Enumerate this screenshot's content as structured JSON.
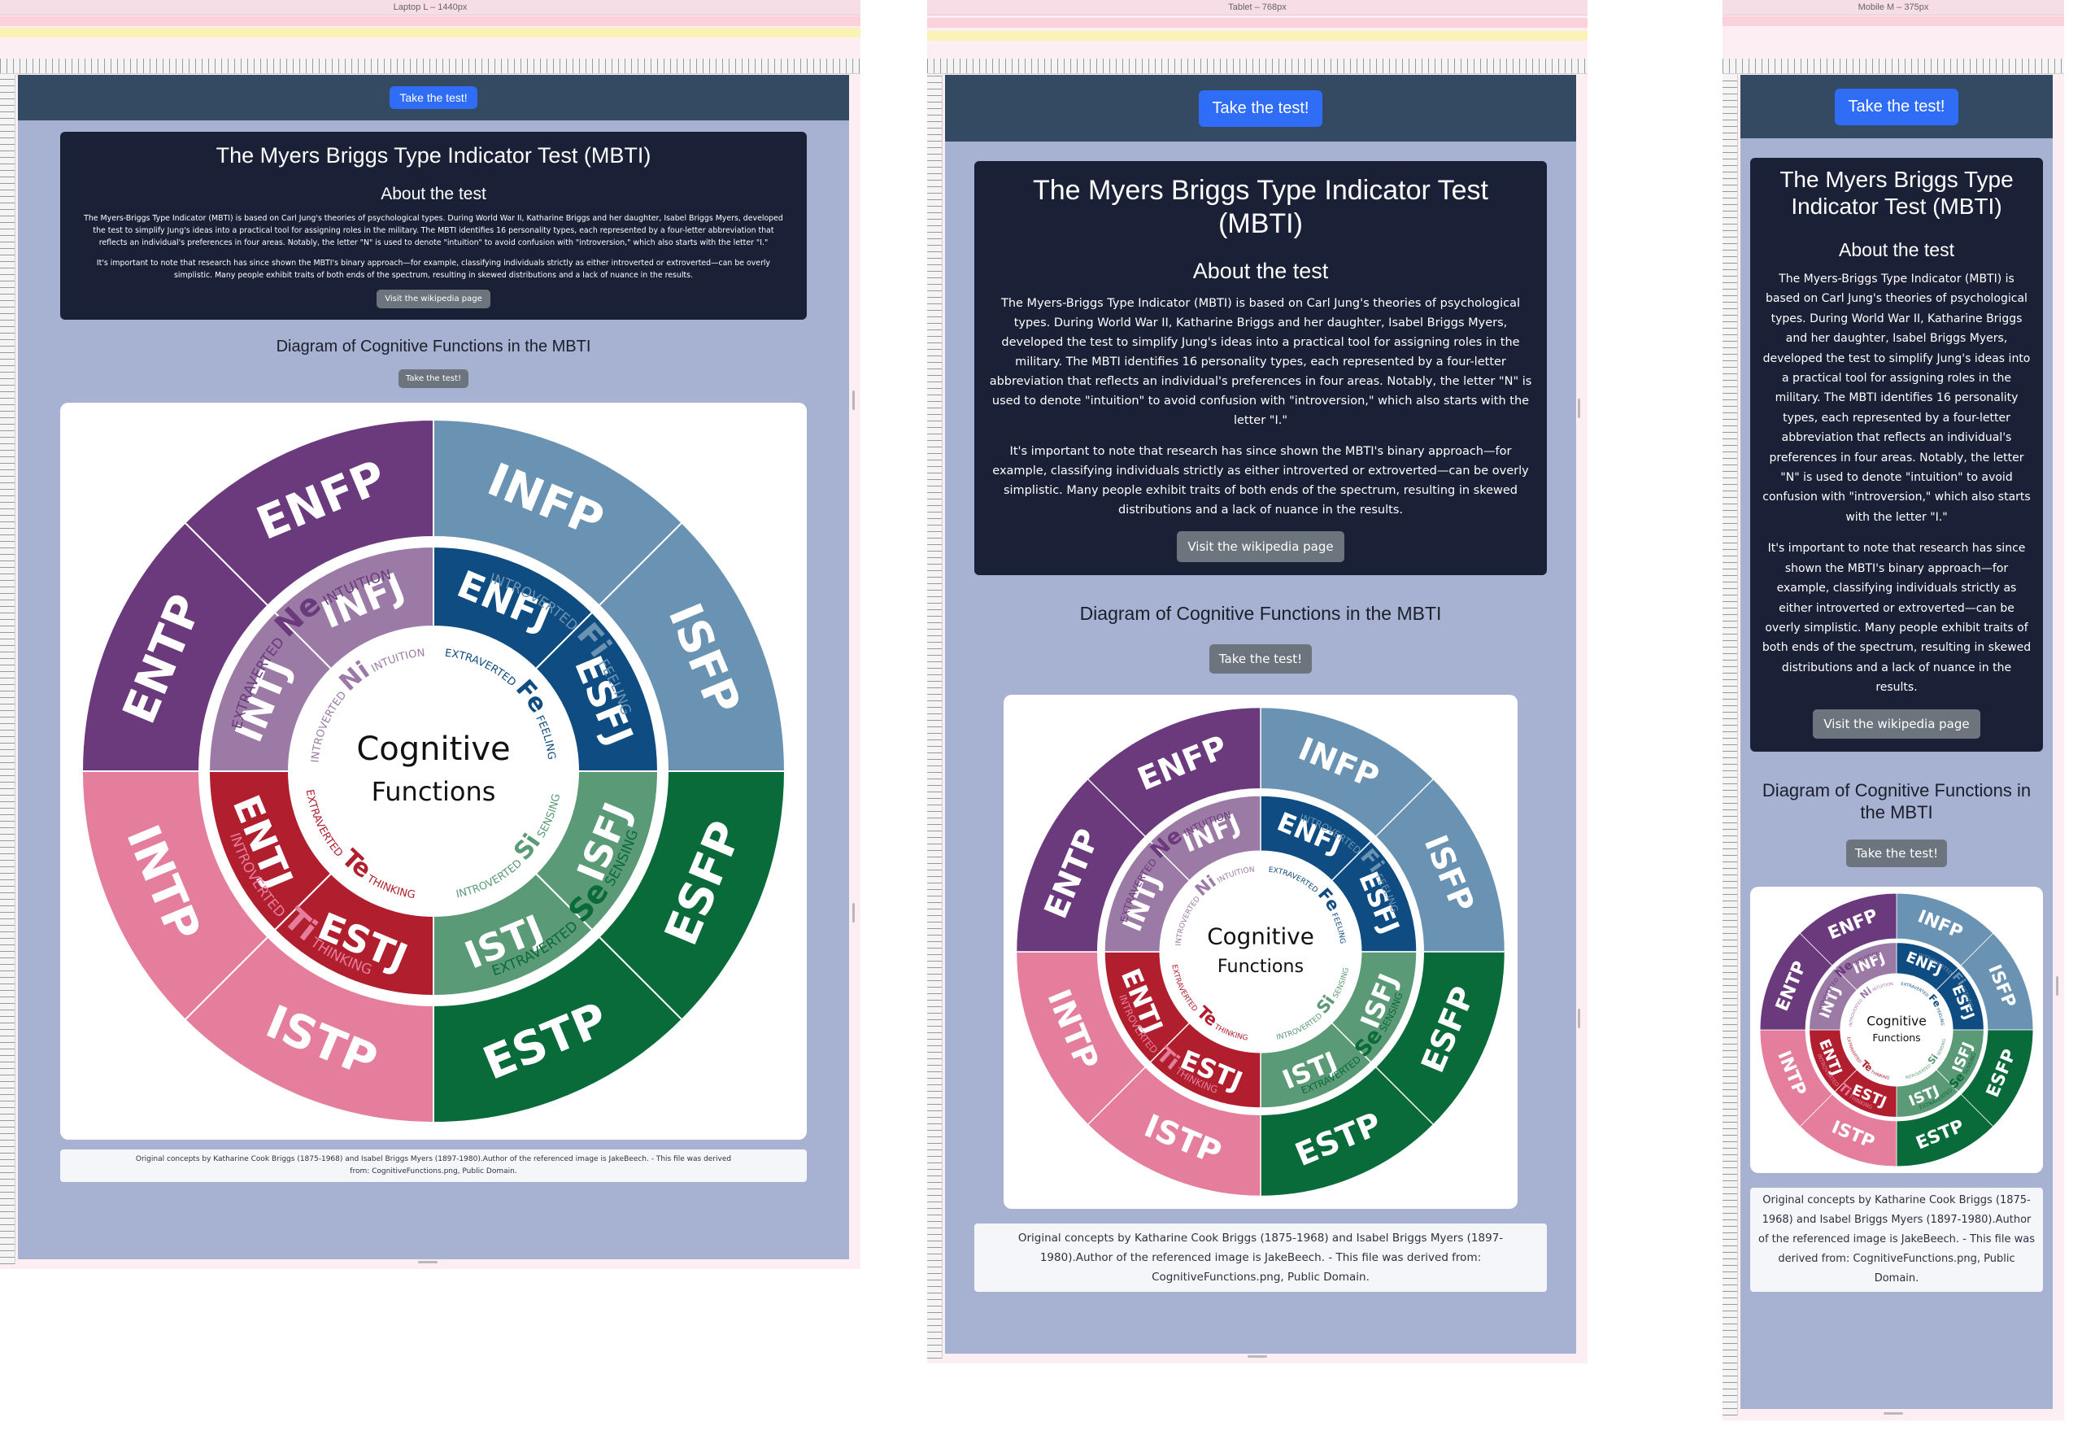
{
  "frames": {
    "laptop": "Laptop L – 1440px",
    "tablet": "Tablet – 768px",
    "mobile": "Mobile M – 375px"
  },
  "page": {
    "cta_label": "Take the test!",
    "title": "The Myers Briggs Type Indicator Test (MBTI)",
    "about_heading": "About the test",
    "paragraph_1": "The Myers-Briggs Type Indicator (MBTI) is based on Carl Jung's theories of psychological types. During World War II, Katharine Briggs and her daughter, Isabel Briggs Myers, developed the test to simplify Jung's ideas into a practical tool for assigning roles in the military. The MBTI identifies 16 personality types, each represented by a four-letter abbreviation that reflects an individual's preferences in four areas. Notably, the letter \"N\" is used to denote \"intuition\" to avoid confusion with \"introversion,\" which also starts with the letter \"I.\"",
    "paragraph_2": "It's important to note that research has since shown the MBTI's binary approach—for example, classifying individuals strictly as either introverted or extroverted—can be overly simplistic. Many people exhibit traits of both ends of the spectrum, resulting in skewed distributions and a lack of nuance in the results.",
    "wiki_button": "Visit the wikipedia page",
    "diagram_heading": "Diagram of Cognitive Functions in the MBTI",
    "diagram_button": "Take the test!",
    "footer": "Original concepts by Katharine Cook Briggs (1875-1968) and Isabel Briggs Myers (1897-1980).Author of the referenced image is JakeBeech. - This file was derived from: CognitiveFunctions.png, Public Domain."
  },
  "wheel": {
    "center_line_1": "Cognitive",
    "center_line_2": "Functions",
    "outer": [
      {
        "type": "INFP",
        "color": "#6a93b3"
      },
      {
        "type": "ISFP",
        "color": "#6a93b3"
      },
      {
        "type": "ESFP",
        "color": "#0a6b3a"
      },
      {
        "type": "ESTP",
        "color": "#0a6b3a"
      },
      {
        "type": "ISTP",
        "color": "#e57e9c"
      },
      {
        "type": "INTP",
        "color": "#e57e9c"
      },
      {
        "type": "ENTP",
        "color": "#6a3a7d"
      },
      {
        "type": "ENFP",
        "color": "#6a3a7d"
      }
    ],
    "inner": [
      {
        "type": "ENFJ",
        "color": "#0f4c82"
      },
      {
        "type": "ESFJ",
        "color": "#0f4c82"
      },
      {
        "type": "ISFJ",
        "color": "#5a9a76"
      },
      {
        "type": "ISTJ",
        "color": "#5a9a76"
      },
      {
        "type": "ESTJ",
        "color": "#b11f2e"
      },
      {
        "type": "ENTJ",
        "color": "#b11f2e"
      },
      {
        "type": "INTJ",
        "color": "#9c7aa6"
      },
      {
        "type": "INFJ",
        "color": "#9c7aa6"
      }
    ],
    "functions": [
      {
        "code": "Fi",
        "prefix": "INTROVERTED",
        "suffix": "FEELING",
        "color": "#6a93b3"
      },
      {
        "code": "Se",
        "prefix": "EXTRAVERTED",
        "suffix": "SENSING",
        "color": "#0a6b3a"
      },
      {
        "code": "Ti",
        "prefix": "INTROVERTED",
        "suffix": "THINKING",
        "color": "#e57e9c"
      },
      {
        "code": "Ne",
        "prefix": "EXTRAVERTED",
        "suffix": "INTUITION",
        "color": "#6a3a7d"
      },
      {
        "code": "Fe",
        "prefix": "EXTRAVERTED",
        "suffix": "FEELING",
        "color": "#0f4c82"
      },
      {
        "code": "Si",
        "prefix": "INTROVERTED",
        "suffix": "SENSING",
        "color": "#5a9a76"
      },
      {
        "code": "Te",
        "prefix": "EXTRAVERTED",
        "suffix": "THINKING",
        "color": "#b11f2e"
      },
      {
        "code": "Ni",
        "prefix": "INTROVERTED",
        "suffix": "INTUITION",
        "color": "#9c7aa6"
      }
    ]
  }
}
